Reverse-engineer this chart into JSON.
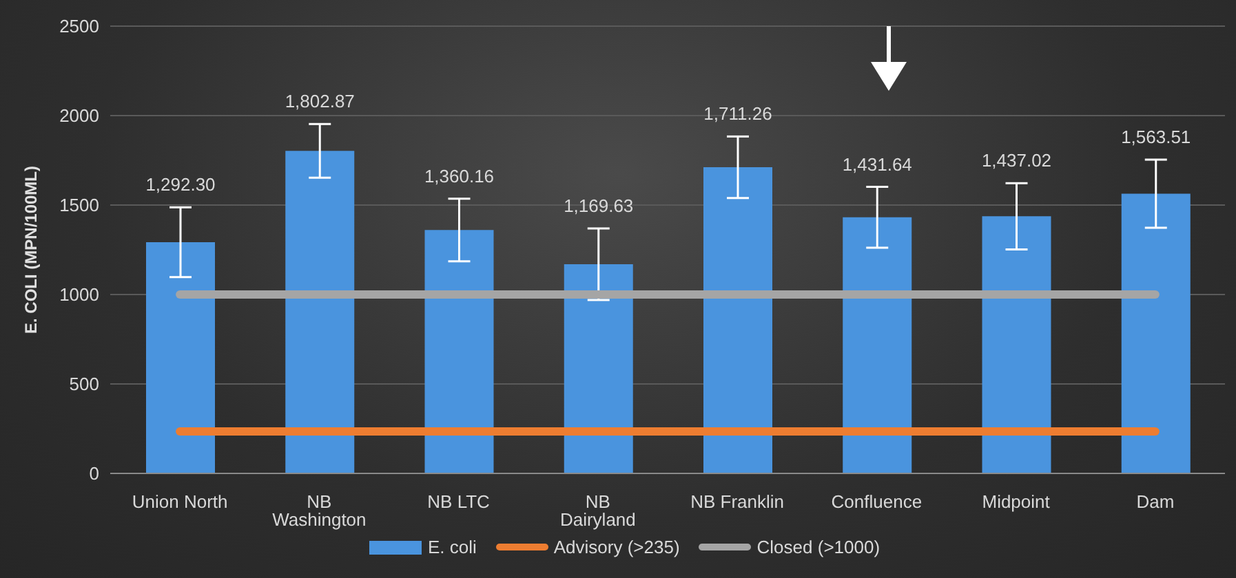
{
  "chart_data": {
    "type": "bar",
    "ylabel": "E. COLI (MPN/100ML)",
    "categories": [
      "Union North",
      "NB Washington",
      "NB LTC",
      "NB Dairyland",
      "NB Franklin",
      "Confluence",
      "Midpoint",
      "Dam"
    ],
    "series": [
      {
        "name": "E. coli",
        "color": "#4a94de",
        "values": [
          1292.3,
          1802.87,
          1360.16,
          1169.63,
          1711.26,
          1431.64,
          1437.02,
          1563.51
        ],
        "errors": [
          195,
          150,
          175,
          200,
          172,
          170,
          185,
          190
        ],
        "value_labels": [
          "1,292.30",
          "1,802.87",
          "1,360.16",
          "1,169.63",
          "1,711.26",
          "1,431.64",
          "1,437.02",
          "1,563.51"
        ]
      },
      {
        "name": "Advisory (>235)",
        "type": "line",
        "color": "#ed7d31",
        "values": [
          235,
          235,
          235,
          235,
          235,
          235,
          235,
          235
        ]
      },
      {
        "name": "Closed (>1000)",
        "type": "line",
        "color": "#a5a5a5",
        "values": [
          1000,
          1000,
          1000,
          1000,
          1000,
          1000,
          1000,
          1000
        ]
      }
    ],
    "ylim": [
      0,
      2500
    ],
    "yticks": [
      0,
      500,
      1000,
      1500,
      2000,
      2500
    ],
    "grid": "y",
    "legend": "bottom",
    "marker": "none"
  }
}
